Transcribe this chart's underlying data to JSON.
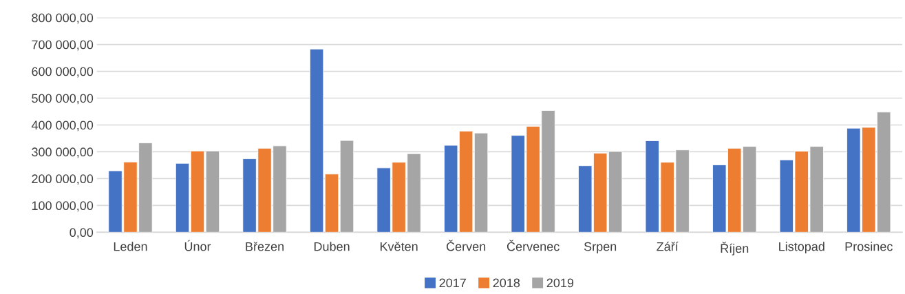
{
  "chart_data": {
    "type": "bar",
    "categories": [
      "Leden",
      "Únor",
      "Březen",
      "Duben",
      "Květen",
      "Červen",
      "Červenec",
      "Srpen",
      "Září",
      "Říjen",
      "Listopad",
      "Prosinec"
    ],
    "series": [
      {
        "name": "2017",
        "color": "#4472c4",
        "values": [
          229000,
          257000,
          274000,
          683000,
          240000,
          324000,
          361000,
          248000,
          341000,
          251000,
          270000,
          388000
        ]
      },
      {
        "name": "2018",
        "color": "#ed7d31",
        "values": [
          262000,
          303000,
          313000,
          217000,
          261000,
          377000,
          395000,
          295000,
          261000,
          313000,
          302000,
          391000
        ]
      },
      {
        "name": "2019",
        "color": "#a5a5a5",
        "values": [
          333000,
          303000,
          322000,
          342000,
          293000,
          370000,
          454000,
          301000,
          307000,
          320000,
          320000,
          448000
        ]
      }
    ],
    "ylim": [
      0,
      800000
    ],
    "yticks": [
      {
        "value": 0,
        "label": "0,00"
      },
      {
        "value": 100000,
        "label": "100 000,00"
      },
      {
        "value": 200000,
        "label": "200 000,00"
      },
      {
        "value": 300000,
        "label": "300 000,00"
      },
      {
        "value": 400000,
        "label": "400 000,00"
      },
      {
        "value": 500000,
        "label": "500 000,00"
      },
      {
        "value": 600000,
        "label": "600 000,00"
      },
      {
        "value": 700000,
        "label": "700 000,00"
      },
      {
        "value": 800000,
        "label": "800 000,00"
      }
    ],
    "grid": "y",
    "legend": "bottom"
  }
}
